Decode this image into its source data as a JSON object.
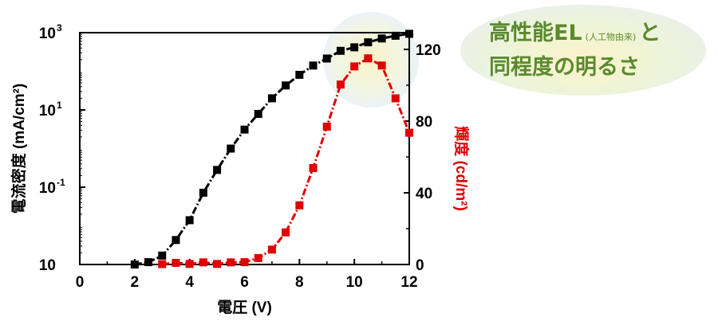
{
  "chart_data": {
    "type": "line",
    "xlabel": "電圧 (V)",
    "ylabel": "電流密度 (mA/cm²)",
    "y2label": "輝度 (cd/m²)",
    "x_ticks": [
      "0",
      "2",
      "4",
      "6",
      "8",
      "10",
      "12"
    ],
    "y_ticks": [
      {
        "base": "10",
        "exp": "3"
      },
      {
        "base": "10",
        "exp": "1"
      },
      {
        "base": "10",
        "exp": "-1"
      },
      {
        "base": "10",
        "exp": ""
      }
    ],
    "y2_ticks": [
      "0",
      "40",
      "80",
      "120"
    ],
    "xlim": [
      0,
      12
    ],
    "ylim_log10": [
      -3,
      3
    ],
    "y2lim": [
      0,
      130
    ],
    "y_scale": "log",
    "series": [
      {
        "axis": "left",
        "color": "#000000",
        "x": [
          2,
          2.5,
          3,
          3.5,
          4,
          4.5,
          5,
          5.5,
          6,
          6.5,
          7,
          7.5,
          8,
          8.5,
          9,
          9.5,
          10,
          10.5,
          11,
          11.5,
          12
        ],
        "y": [
          0.001,
          0.00115,
          0.0017,
          0.0043,
          0.014,
          0.072,
          0.28,
          1.0,
          3.1,
          7.9,
          20,
          43,
          81,
          141,
          214,
          339,
          417,
          562,
          708,
          832,
          933
        ]
      },
      {
        "axis": "right",
        "color": "#e00000",
        "x": [
          3,
          3.5,
          4,
          4.5,
          5,
          5.5,
          6,
          6.5,
          7,
          7.5,
          8,
          8.5,
          9,
          9.5,
          10,
          10.5,
          11,
          11.5,
          12
        ],
        "y": [
          0.2,
          0.9,
          0.3,
          1.2,
          0.3,
          1.2,
          1.3,
          3.6,
          8.3,
          17.9,
          33,
          53.8,
          76.9,
          100.4,
          110.5,
          115,
          111,
          92.7,
          73.5
        ]
      }
    ]
  },
  "callout": {
    "line1": "高性能EL",
    "note": "(人工物由来)",
    "line1_end": "と",
    "line2": "同程度の明るさ"
  }
}
